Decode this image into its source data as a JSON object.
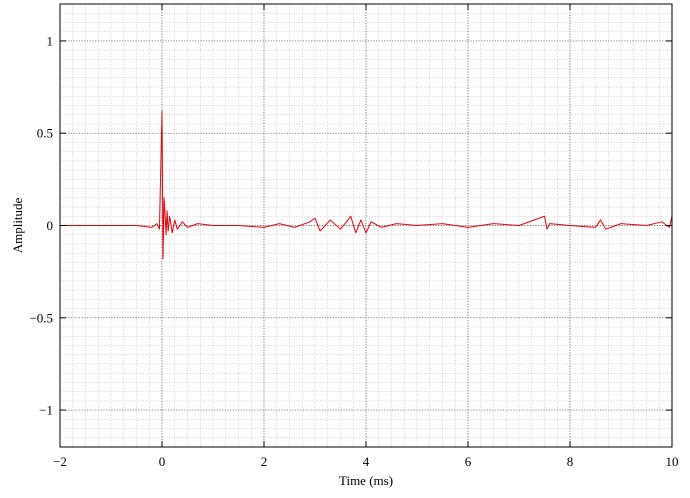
{
  "chart_data": {
    "type": "line",
    "title": "",
    "xlabel": "Time (ms)",
    "ylabel": "Amplitude",
    "xlim": [
      -2,
      10
    ],
    "ylim": [
      -1.2,
      1.2
    ],
    "grid": "major and minor, dotted",
    "legend": "none",
    "x_ticks": [
      -2,
      0,
      2,
      4,
      6,
      8,
      10
    ],
    "x_tick_labels": [
      "−2",
      "0",
      "2",
      "4",
      "6",
      "8",
      "10"
    ],
    "y_ticks": [
      1,
      0.5,
      0,
      -0.5,
      -1
    ],
    "y_tick_labels": [
      "1",
      "0.5",
      "0",
      "−0.5",
      "−1"
    ],
    "series": [
      {
        "color": "#e8000b",
        "x": [
          -2,
          -0.5,
          -0.2,
          -0.1,
          -0.05,
          0,
          0.02,
          0.04,
          0.06,
          0.08,
          0.1,
          0.12,
          0.15,
          0.2,
          0.25,
          0.3,
          0.4,
          0.5,
          0.7,
          1.0,
          1.5,
          2.0,
          2.3,
          2.6,
          2.9,
          3.0,
          3.1,
          3.3,
          3.5,
          3.7,
          3.8,
          3.9,
          4.0,
          4.1,
          4.3,
          4.6,
          5.0,
          5.5,
          6.0,
          6.5,
          7.0,
          7.5,
          7.55,
          7.6,
          8.0,
          8.5,
          8.6,
          8.7,
          9.0,
          9.5,
          9.8,
          9.95,
          10
        ],
        "y": [
          0,
          0,
          -0.01,
          0.01,
          -0.02,
          0.62,
          -0.18,
          0.15,
          0.06,
          -0.05,
          0.08,
          -0.03,
          0.05,
          -0.04,
          0.03,
          -0.02,
          0.02,
          -0.01,
          0.01,
          0,
          0,
          -0.01,
          0.01,
          -0.01,
          0.02,
          0.04,
          -0.03,
          0.03,
          -0.02,
          0.05,
          -0.04,
          0.03,
          -0.04,
          0.02,
          -0.01,
          0.01,
          0,
          0.01,
          -0.01,
          0.01,
          0,
          0.05,
          -0.02,
          0.01,
          0,
          -0.01,
          0.03,
          -0.02,
          0.01,
          0,
          0.02,
          -0.01,
          0.05
        ]
      }
    ]
  }
}
